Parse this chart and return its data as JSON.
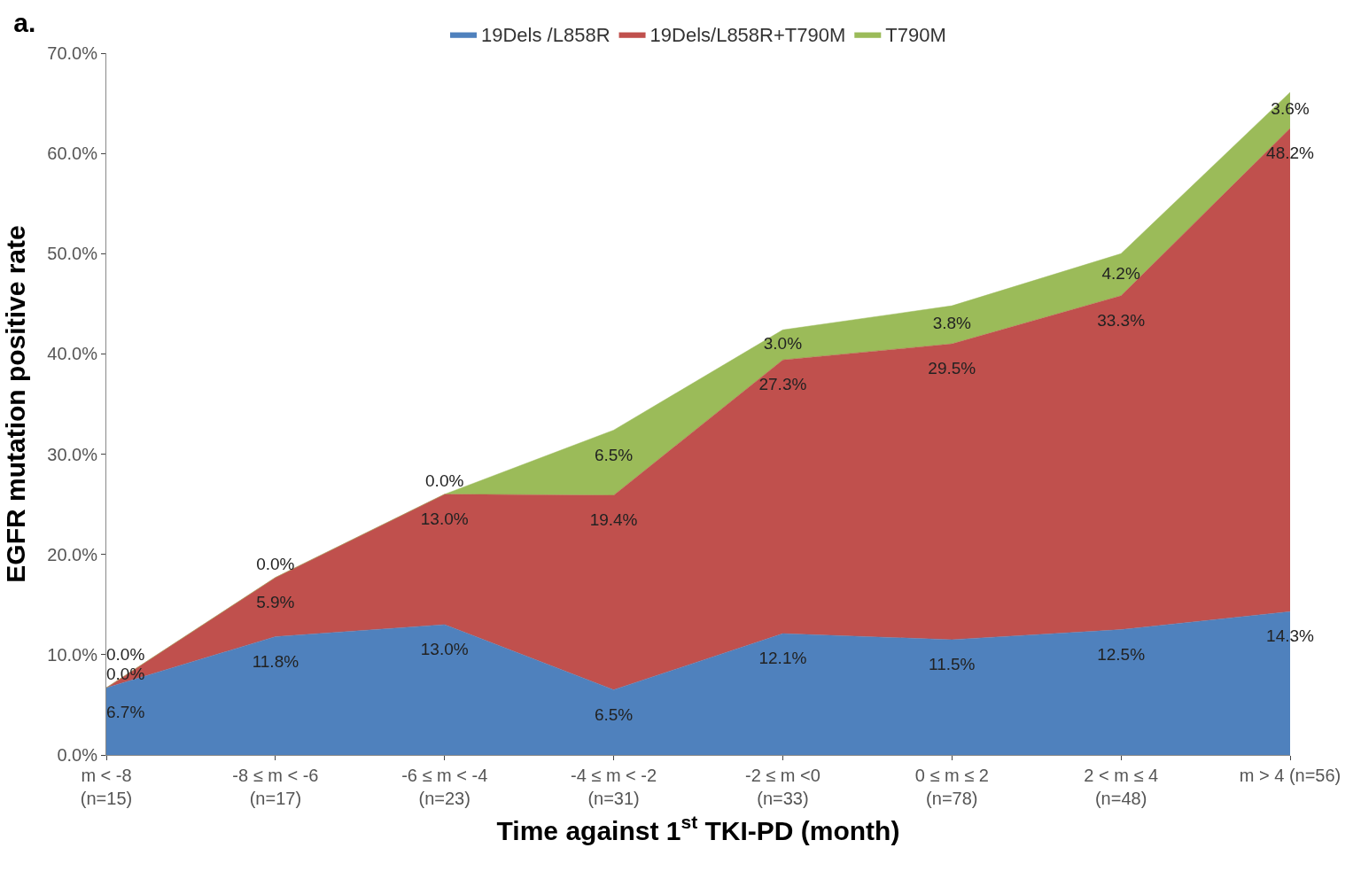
{
  "chart_data": {
    "type": "area",
    "stacked": true,
    "title": "a.",
    "xlabel": "Time against 1$^{st}$ TKI-PD (month)",
    "ylabel": "EGFR mutation positive rate",
    "categories": [
      "m < -8\n(n=15)",
      "-8 ≤ m < -6\n(n=17)",
      "-6 ≤ m < -4\n(n=23)",
      "-4 ≤ m < -2\n(n=31)",
      "-2 ≤ m <0\n(n=33)",
      "0 ≤ m ≤ 2\n(n=78)",
      "2 < m ≤ 4\n(n=48)",
      "m > 4 (n=56)"
    ],
    "series": [
      {
        "name": "19Dels /L858R",
        "color": "#4f81bd",
        "values": [
          6.7,
          11.8,
          13.0,
          6.5,
          12.1,
          11.5,
          12.5,
          14.3
        ],
        "value_labels": [
          "6.7%",
          "11.8%",
          "13.0%",
          "6.5%",
          "12.1%",
          "11.5%",
          "12.5%",
          "14.3%"
        ]
      },
      {
        "name": "19Dels/L858R+T790M",
        "color": "#c0504d",
        "values": [
          0.0,
          5.9,
          13.0,
          19.4,
          27.3,
          29.5,
          33.3,
          48.2
        ],
        "value_labels": [
          "0.0%",
          "5.9%",
          "13.0%",
          "19.4%",
          "27.3%",
          "29.5%",
          "33.3%",
          "48.2%"
        ]
      },
      {
        "name": "T790M",
        "color": "#9bbb59",
        "values": [
          0.0,
          0.0,
          0.0,
          6.5,
          3.0,
          3.8,
          4.2,
          3.6
        ],
        "value_labels": [
          "0.0%",
          "0.0%",
          "0.0%",
          "6.5%",
          "3.0%",
          "3.8%",
          "4.2%",
          "3.6%"
        ]
      }
    ],
    "ylim": [
      0,
      70
    ],
    "yticks": [
      {
        "value": 0,
        "label": "0.0%"
      },
      {
        "value": 10,
        "label": "10.0%"
      },
      {
        "value": 20,
        "label": "20.0%"
      },
      {
        "value": 30,
        "label": "30.0%"
      },
      {
        "value": 40,
        "label": "40.0%"
      },
      {
        "value": 50,
        "label": "50.0%"
      },
      {
        "value": 60,
        "label": "60.0%"
      },
      {
        "value": 70,
        "label": "70.0%"
      }
    ],
    "legend": "top"
  }
}
